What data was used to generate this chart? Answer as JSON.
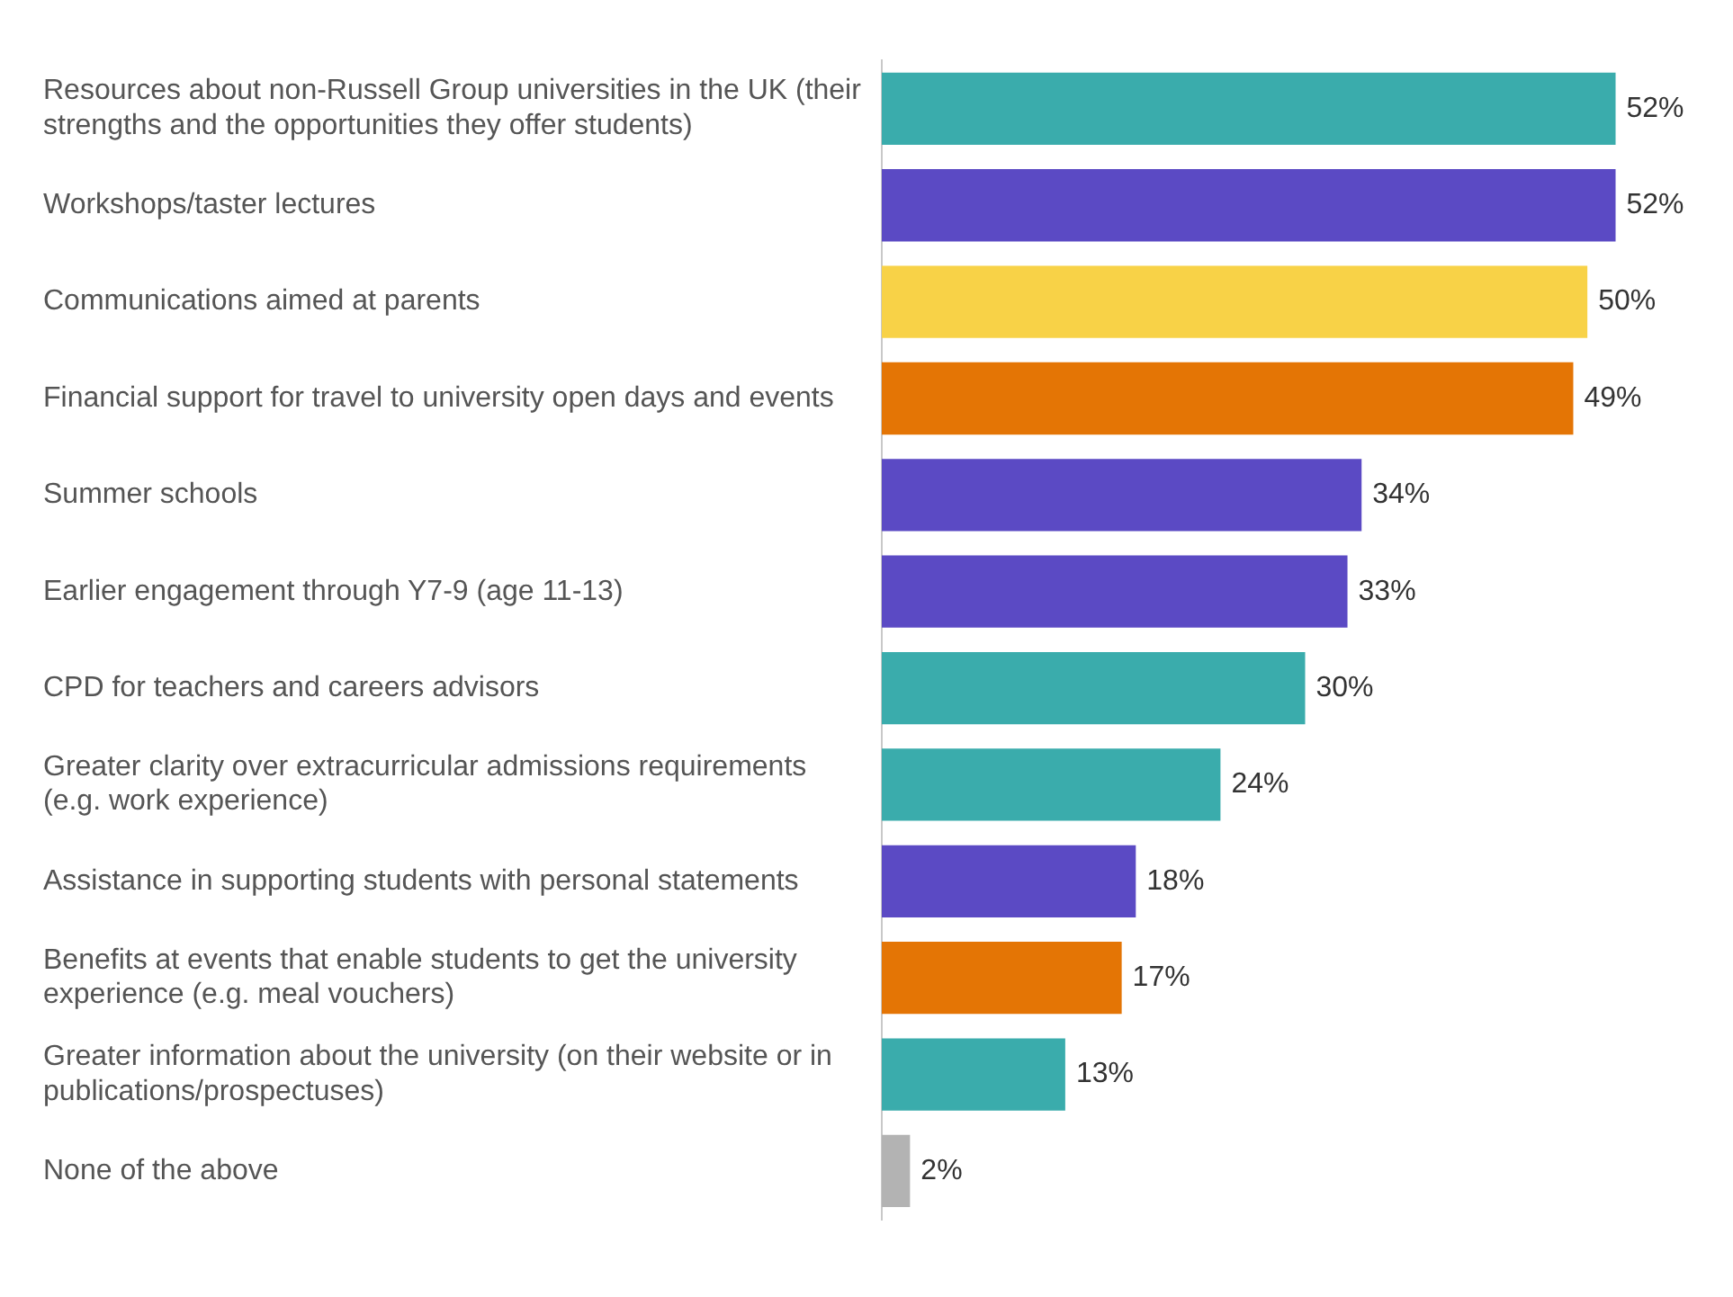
{
  "chart_data": {
    "type": "bar",
    "orientation": "horizontal",
    "categories": [
      "Resources about non-Russell Group universities in the UK (their strengths and the opportunities they offer students)",
      "Workshops/taster lectures",
      "Communications aimed at parents",
      "Financial support for travel to university open days and events",
      "Summer schools",
      "Earlier engagement through Y7-9 (age 11-13)",
      "CPD for teachers and careers advisors",
      "Greater clarity over extracurricular admissions requirements (e.g. work experience)",
      "Assistance in supporting students with personal statements",
      "Benefits at events that enable students to get the university experience (e.g. meal vouchers)",
      "Greater information about the university (on their website or in publications/prospectuses)",
      "None of the above"
    ],
    "values": [
      52,
      52,
      50,
      49,
      34,
      33,
      30,
      24,
      18,
      17,
      13,
      2
    ],
    "colors": [
      "#3aacac",
      "#5b4ac4",
      "#f8d247",
      "#e47505",
      "#5b4ac4",
      "#5b4ac4",
      "#3aacac",
      "#3aacac",
      "#5b4ac4",
      "#e47505",
      "#3aacac",
      "#b3b3b3"
    ],
    "value_labels": [
      "52%",
      "52%",
      "50%",
      "49%",
      "34%",
      "33%",
      "30%",
      "24%",
      "18%",
      "17%",
      "13%",
      "2%"
    ],
    "legend": false,
    "tick_labels": "y"
  }
}
